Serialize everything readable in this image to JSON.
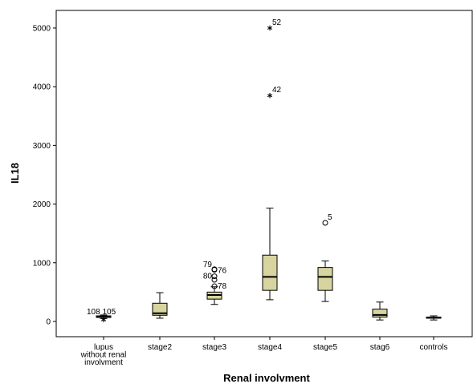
{
  "chart_data": {
    "type": "boxplot",
    "xlabel": "Renal involvment",
    "ylabel": "IL18",
    "ylim": [
      -260,
      5300
    ],
    "yticks": [
      0,
      1000,
      2000,
      3000,
      4000,
      5000
    ],
    "grid": false,
    "legend": "none",
    "colors": {
      "box_fill": "#d7d49f",
      "stroke": "#000000",
      "background": "#ffffff"
    },
    "categories": [
      {
        "label": [
          "lupus",
          "without renal",
          "involvment"
        ],
        "whisker_low": 50,
        "q1": 68,
        "median": 82,
        "q3": 95,
        "whisker_high": 110,
        "outliers": [
          {
            "value": 30,
            "marker": "star",
            "label": "108 105"
          }
        ]
      },
      {
        "label": [
          "stage2"
        ],
        "whisker_low": 55,
        "q1": 105,
        "median": 140,
        "q3": 310,
        "whisker_high": 490,
        "outliers": []
      },
      {
        "label": [
          "stage3"
        ],
        "whisker_low": 290,
        "q1": 380,
        "median": 450,
        "q3": 500,
        "whisker_high": 590,
        "outliers": [
          {
            "value": 890,
            "marker": "circle",
            "label": "79"
          },
          {
            "value": 880,
            "marker": "circle",
            "label": "76"
          },
          {
            "value": 770,
            "marker": "circle",
            "label": "80"
          },
          {
            "value": 710,
            "marker": "circle",
            "label": ""
          },
          {
            "value": 600,
            "marker": "circle",
            "label": "78"
          }
        ]
      },
      {
        "label": [
          "stage4"
        ],
        "whisker_low": 370,
        "q1": 530,
        "median": 760,
        "q3": 1130,
        "whisker_high": 1930,
        "outliers": [
          {
            "value": 5000,
            "marker": "star",
            "label": "52"
          },
          {
            "value": 3850,
            "marker": "star",
            "label": "42"
          }
        ]
      },
      {
        "label": [
          "stage5"
        ],
        "whisker_low": 340,
        "q1": 530,
        "median": 760,
        "q3": 920,
        "whisker_high": 1030,
        "outliers": [
          {
            "value": 1680,
            "marker": "circle",
            "label": "5"
          }
        ]
      },
      {
        "label": [
          "stag6"
        ],
        "whisker_low": 25,
        "q1": 75,
        "median": 110,
        "q3": 210,
        "whisker_high": 330,
        "outliers": []
      },
      {
        "label": [
          "controls"
        ],
        "whisker_low": 25,
        "q1": 55,
        "median": 65,
        "q3": 75,
        "whisker_high": 95,
        "outliers": []
      }
    ]
  }
}
